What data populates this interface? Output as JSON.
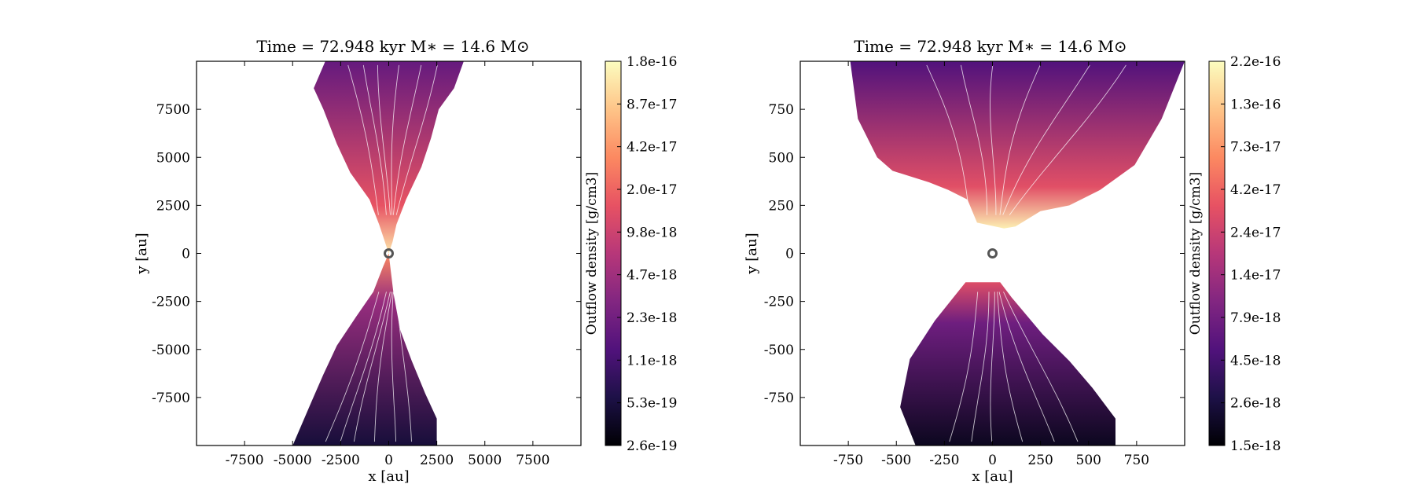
{
  "figure": {
    "panels": 2,
    "colormap": "magma",
    "colormap_stops": [
      "#000004",
      "#1d1147",
      "#51127c",
      "#822681",
      "#b73779",
      "#e75263",
      "#fc8961",
      "#fec488",
      "#fcfdbf"
    ],
    "streamline_color": "#ffffff",
    "marker_color": "#555555"
  },
  "chart_data": [
    {
      "type": "heatmap",
      "title": "Time = 72.948 kyr    M$_*$ = 14.6 M$_\\odot$",
      "title_display": "Time = 72.948 kyr    M∗ = 14.6 M⊙",
      "xlabel": "x [au]",
      "ylabel": "y [au]",
      "xlim": [
        -10000,
        10000
      ],
      "ylim": [
        -10000,
        10000
      ],
      "xticks": [
        -7500,
        -5000,
        -2500,
        0,
        2500,
        5000,
        7500
      ],
      "xtick_labels": [
        "-7500",
        "-5000",
        "-2500",
        "0",
        "2500",
        "5000",
        "7500"
      ],
      "yticks": [
        7500,
        5000,
        2500,
        0,
        -2500,
        -5000,
        -7500
      ],
      "ytick_labels": [
        "7500",
        "5000",
        "2500",
        "0",
        "-2500",
        "-5000",
        "-7500"
      ],
      "colorbar": {
        "label": "Outflow density [g/cm3]",
        "scale": "log",
        "range": [
          2.6e-19,
          1.8e-16
        ],
        "tick_labels": [
          "1.8e-16",
          "8.7e-17",
          "4.2e-17",
          "2.0e-17",
          "9.8e-18",
          "4.7e-18",
          "2.3e-18",
          "1.1e-18",
          "5.3e-19",
          "2.6e-19"
        ]
      },
      "star_position": [
        0,
        0
      ],
      "upper_lobe_outline": [
        [
          -3300,
          10000
        ],
        [
          3900,
          10000
        ],
        [
          3400,
          8600
        ],
        [
          2600,
          7500
        ],
        [
          2200,
          6000
        ],
        [
          1700,
          4500
        ],
        [
          900,
          2800
        ],
        [
          400,
          1500
        ],
        [
          200,
          600
        ],
        [
          0,
          0
        ],
        [
          -200,
          600
        ],
        [
          -500,
          1500
        ],
        [
          -1000,
          2800
        ],
        [
          -2000,
          4200
        ],
        [
          -2700,
          5700
        ],
        [
          -3400,
          7500
        ],
        [
          -3900,
          8600
        ]
      ],
      "lower_lobe_outline": [
        [
          0,
          0
        ],
        [
          -300,
          -700
        ],
        [
          -800,
          -2000
        ],
        [
          -1700,
          -3300
        ],
        [
          -2700,
          -4800
        ],
        [
          -3400,
          -6300
        ],
        [
          -4100,
          -7900
        ],
        [
          -5000,
          -10000
        ],
        [
          2500,
          -10000
        ],
        [
          2500,
          -8600
        ],
        [
          1900,
          -7300
        ],
        [
          1200,
          -5600
        ],
        [
          600,
          -4000
        ],
        [
          250,
          -2100
        ],
        [
          80,
          -700
        ]
      ],
      "upper_lobe_density_fraction": [
        0.3,
        0.95
      ],
      "lower_lobe_density_fraction": [
        0.1,
        0.75
      ]
    },
    {
      "type": "heatmap",
      "title": "Time = 72.948 kyr    M$_*$ = 14.6 M$_\\odot$",
      "title_display": "Time = 72.948 kyr    M∗ = 14.6 M⊙",
      "xlabel": "x [au]",
      "ylabel": "y [au]",
      "xlim": [
        -1000,
        1000
      ],
      "ylim": [
        -1000,
        1000
      ],
      "xticks": [
        -750,
        -500,
        -250,
        0,
        250,
        500,
        750
      ],
      "xtick_labels": [
        "-750",
        "-500",
        "-250",
        "0",
        "250",
        "500",
        "750"
      ],
      "yticks": [
        750,
        500,
        250,
        0,
        -250,
        -500,
        -750
      ],
      "ytick_labels": [
        "750",
        "500",
        "250",
        "0",
        "-250",
        "-500",
        "-750"
      ],
      "colorbar": {
        "label": "Outflow density [g/cm3]",
        "scale": "log",
        "range": [
          1.5e-18,
          2.2e-16
        ],
        "tick_labels": [
          "2.2e-16",
          "1.3e-16",
          "7.3e-17",
          "4.2e-17",
          "2.4e-17",
          "1.4e-17",
          "7.9e-18",
          "4.5e-18",
          "2.6e-18",
          "1.5e-18"
        ]
      },
      "star_position": [
        0,
        0
      ],
      "upper_lobe_outline": [
        [
          -740,
          1000
        ],
        [
          1000,
          1000
        ],
        [
          880,
          700
        ],
        [
          740,
          460
        ],
        [
          560,
          330
        ],
        [
          400,
          250
        ],
        [
          250,
          220
        ],
        [
          120,
          140
        ],
        [
          60,
          130
        ],
        [
          -80,
          160
        ],
        [
          -130,
          280
        ],
        [
          -230,
          330
        ],
        [
          -330,
          370
        ],
        [
          -520,
          430
        ],
        [
          -600,
          500
        ],
        [
          -700,
          700
        ]
      ],
      "lower_lobe_outline": [
        [
          -400,
          -1000
        ],
        [
          640,
          -1000
        ],
        [
          640,
          -860
        ],
        [
          520,
          -700
        ],
        [
          400,
          -560
        ],
        [
          260,
          -420
        ],
        [
          100,
          -230
        ],
        [
          40,
          -150
        ],
        [
          -140,
          -150
        ],
        [
          -300,
          -350
        ],
        [
          -430,
          -550
        ],
        [
          -480,
          -800
        ]
      ],
      "upper_lobe_density_fraction": [
        0.25,
        0.97
      ],
      "lower_lobe_density_fraction": [
        0.05,
        0.6
      ]
    }
  ]
}
